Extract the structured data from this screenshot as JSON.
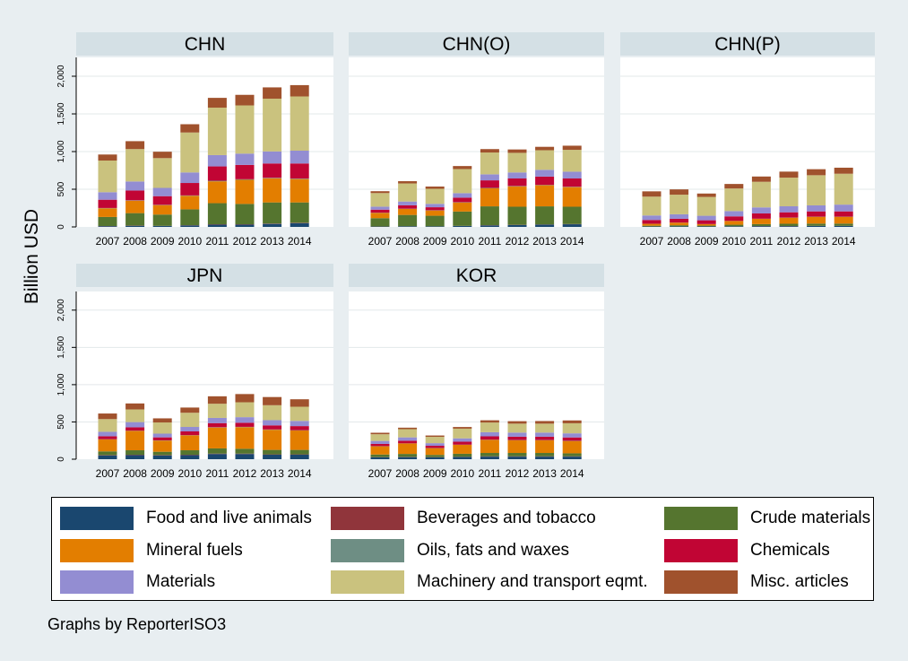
{
  "chart_data": {
    "type": "bar",
    "stacked": true,
    "ylabel": "Billion USD",
    "note": "Graphs by ReporterISO3",
    "categories": [
      "2007",
      "2008",
      "2009",
      "2010",
      "2011",
      "2012",
      "2013",
      "2014"
    ],
    "ylim": [
      0,
      2250
    ],
    "yticks": [
      "0",
      "500",
      "1,000",
      "1,500",
      "2,000"
    ],
    "ytick_values": [
      0,
      500,
      1000,
      1500,
      2000
    ],
    "grid": true,
    "legend_position": "bottom",
    "series": [
      {
        "name": "Food and live animals",
        "color": "#1a476f"
      },
      {
        "name": "Beverages and tobacco",
        "color": "#90353b"
      },
      {
        "name": "Crude materials",
        "color": "#55752f"
      },
      {
        "name": "Mineral fuels",
        "color": "#e37e00"
      },
      {
        "name": "Oils, fats and waxes",
        "color": "#6e8e84"
      },
      {
        "name": "Chemicals",
        "color": "#c10534"
      },
      {
        "name": "Materials",
        "color": "#938dd2"
      },
      {
        "name": "Machinery and transport eqmt.",
        "color": "#cac27e"
      },
      {
        "name": "Misc. articles",
        "color": "#a0522d"
      }
    ],
    "panels": [
      {
        "title": "CHN",
        "values": [
          [
            10,
            2,
            120,
            115,
            4,
            110,
            100,
            420,
            80
          ],
          [
            15,
            3,
            165,
            165,
            5,
            130,
            120,
            430,
            105
          ],
          [
            12,
            2,
            150,
            125,
            4,
            115,
            110,
            395,
            85
          ],
          [
            20,
            3,
            210,
            180,
            5,
            165,
            140,
            530,
            110
          ],
          [
            30,
            5,
            280,
            290,
            8,
            190,
            150,
            630,
            130
          ],
          [
            30,
            5,
            270,
            320,
            8,
            190,
            150,
            640,
            140
          ],
          [
            40,
            5,
            280,
            320,
            7,
            190,
            160,
            700,
            150
          ],
          [
            50,
            5,
            270,
            310,
            7,
            200,
            170,
            720,
            150
          ]
        ]
      },
      {
        "title": "CHN(O)",
        "values": [
          [
            5,
            1,
            110,
            70,
            3,
            40,
            40,
            180,
            25
          ],
          [
            8,
            1,
            150,
            80,
            3,
            45,
            50,
            240,
            30
          ],
          [
            7,
            1,
            140,
            70,
            3,
            40,
            45,
            200,
            30
          ],
          [
            12,
            2,
            190,
            120,
            4,
            60,
            60,
            320,
            40
          ],
          [
            20,
            3,
            250,
            240,
            5,
            100,
            80,
            290,
            45
          ],
          [
            25,
            3,
            240,
            270,
            5,
            100,
            80,
            260,
            45
          ],
          [
            30,
            3,
            240,
            280,
            5,
            110,
            90,
            260,
            45
          ],
          [
            35,
            3,
            230,
            260,
            5,
            110,
            90,
            290,
            55
          ]
        ]
      },
      {
        "title": "CHN(P)",
        "values": [
          [
            5,
            1,
            10,
            25,
            1,
            50,
            60,
            250,
            70
          ],
          [
            6,
            1,
            15,
            35,
            1,
            50,
            60,
            260,
            70
          ],
          [
            6,
            1,
            10,
            20,
            1,
            50,
            60,
            250,
            45
          ],
          [
            8,
            1,
            20,
            50,
            1,
            60,
            70,
            300,
            60
          ],
          [
            10,
            2,
            25,
            70,
            2,
            70,
            80,
            340,
            70
          ],
          [
            10,
            2,
            30,
            80,
            2,
            70,
            80,
            380,
            80
          ],
          [
            12,
            2,
            30,
            90,
            2,
            70,
            80,
            400,
            80
          ],
          [
            12,
            2,
            30,
            90,
            2,
            70,
            90,
            410,
            80
          ]
        ]
      },
      {
        "title": "JPN",
        "values": [
          [
            50,
            5,
            50,
            160,
            3,
            40,
            60,
            170,
            75
          ],
          [
            55,
            5,
            60,
            260,
            3,
            45,
            70,
            170,
            80
          ],
          [
            50,
            5,
            45,
            150,
            3,
            40,
            50,
            150,
            55
          ],
          [
            55,
            5,
            60,
            200,
            3,
            50,
            60,
            190,
            70
          ],
          [
            70,
            5,
            70,
            280,
            4,
            55,
            70,
            190,
            100
          ],
          [
            70,
            5,
            65,
            290,
            4,
            55,
            75,
            200,
            110
          ],
          [
            60,
            5,
            60,
            270,
            4,
            55,
            70,
            200,
            110
          ],
          [
            60,
            5,
            60,
            260,
            4,
            55,
            70,
            190,
            100
          ]
        ]
      },
      {
        "title": "KOR",
        "values": [
          [
            25,
            3,
            35,
            110,
            2,
            30,
            40,
            90,
            20
          ],
          [
            28,
            3,
            40,
            140,
            2,
            35,
            45,
            110,
            20
          ],
          [
            25,
            3,
            30,
            90,
            2,
            30,
            35,
            85,
            18
          ],
          [
            30,
            3,
            40,
            120,
            2,
            40,
            45,
            130,
            22
          ],
          [
            35,
            4,
            45,
            175,
            3,
            45,
            55,
            130,
            30
          ],
          [
            35,
            4,
            45,
            170,
            3,
            45,
            55,
            120,
            33
          ],
          [
            35,
            4,
            45,
            170,
            3,
            45,
            55,
            120,
            35
          ],
          [
            35,
            4,
            40,
            165,
            3,
            45,
            55,
            135,
            38
          ]
        ]
      }
    ]
  }
}
